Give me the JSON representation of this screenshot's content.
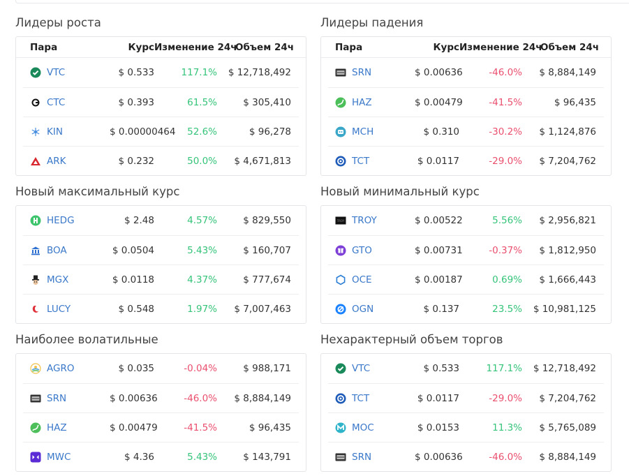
{
  "headers": {
    "pair": "Пара",
    "price": "Курс",
    "change": "Изменение 24ч",
    "volume": "Объем 24ч"
  },
  "sections": [
    {
      "title": "Лидеры роста",
      "show_header": true,
      "rows": [
        {
          "icon": "vtc-icon",
          "symbol": "VTC",
          "price": "$ 0.533",
          "change": "117.1%",
          "dir": "up",
          "volume": "$ 12,718,492"
        },
        {
          "icon": "ctc-icon",
          "symbol": "CTC",
          "price": "$ 0.393",
          "change": "61.5%",
          "dir": "up",
          "volume": "$ 305,410"
        },
        {
          "icon": "kin-icon",
          "symbol": "KIN",
          "price": "$ 0.00000464",
          "change": "52.6%",
          "dir": "up",
          "volume": "$ 96,278"
        },
        {
          "icon": "ark-icon",
          "symbol": "ARK",
          "price": "$ 0.232",
          "change": "50.0%",
          "dir": "up",
          "volume": "$ 4,671,813"
        }
      ]
    },
    {
      "title": "Лидеры падения",
      "show_header": true,
      "rows": [
        {
          "icon": "srn-icon",
          "symbol": "SRN",
          "price": "$ 0.00636",
          "change": "-46.0%",
          "dir": "down",
          "volume": "$ 8,884,149"
        },
        {
          "icon": "haz-icon",
          "symbol": "HAZ",
          "price": "$ 0.00479",
          "change": "-41.5%",
          "dir": "down",
          "volume": "$ 96,435"
        },
        {
          "icon": "mch-icon",
          "symbol": "MCH",
          "price": "$ 0.310",
          "change": "-30.2%",
          "dir": "down",
          "volume": "$ 1,124,876"
        },
        {
          "icon": "tct-icon",
          "symbol": "TCT",
          "price": "$ 0.0117",
          "change": "-29.0%",
          "dir": "down",
          "volume": "$ 7,204,762"
        }
      ]
    },
    {
      "title": "Новый максимальный курс",
      "show_header": false,
      "rows": [
        {
          "icon": "hedg-icon",
          "symbol": "HEDG",
          "price": "$ 2.48",
          "change": "4.57%",
          "dir": "up",
          "volume": "$ 829,550"
        },
        {
          "icon": "boa-icon",
          "symbol": "BOA",
          "price": "$ 0.0504",
          "change": "5.43%",
          "dir": "up",
          "volume": "$ 160,707"
        },
        {
          "icon": "mgx-icon",
          "symbol": "MGX",
          "price": "$ 0.0118",
          "change": "4.37%",
          "dir": "up",
          "volume": "$ 777,674"
        },
        {
          "icon": "lucy-icon",
          "symbol": "LUCY",
          "price": "$ 0.548",
          "change": "1.97%",
          "dir": "up",
          "volume": "$ 7,007,463"
        }
      ]
    },
    {
      "title": "Новый минимальный курс",
      "show_header": false,
      "rows": [
        {
          "icon": "troy-icon",
          "symbol": "TROY",
          "price": "$ 0.00522",
          "change": "5.56%",
          "dir": "up",
          "volume": "$ 2,956,821"
        },
        {
          "icon": "gto-icon",
          "symbol": "GTO",
          "price": "$ 0.00731",
          "change": "-0.37%",
          "dir": "down",
          "volume": "$ 1,812,950"
        },
        {
          "icon": "oce-icon",
          "symbol": "OCE",
          "price": "$ 0.00187",
          "change": "0.69%",
          "dir": "up",
          "volume": "$ 1,666,443"
        },
        {
          "icon": "ogn-icon",
          "symbol": "OGN",
          "price": "$ 0.137",
          "change": "23.5%",
          "dir": "up",
          "volume": "$ 10,981,125"
        }
      ]
    },
    {
      "title": "Наиболее волатильные",
      "show_header": false,
      "rows": [
        {
          "icon": "agro-icon",
          "symbol": "AGRO",
          "price": "$ 0.035",
          "change": "-0.04%",
          "dir": "down",
          "volume": "$ 988,171"
        },
        {
          "icon": "srn-icon",
          "symbol": "SRN",
          "price": "$ 0.00636",
          "change": "-46.0%",
          "dir": "down",
          "volume": "$ 8,884,149"
        },
        {
          "icon": "haz-icon",
          "symbol": "HAZ",
          "price": "$ 0.00479",
          "change": "-41.5%",
          "dir": "down",
          "volume": "$ 96,435"
        },
        {
          "icon": "mwc-icon",
          "symbol": "MWC",
          "price": "$ 4.36",
          "change": "5.43%",
          "dir": "up",
          "volume": "$ 143,791"
        }
      ]
    },
    {
      "title": "Нехарактерный объем торгов",
      "show_header": false,
      "rows": [
        {
          "icon": "vtc-icon",
          "symbol": "VTC",
          "price": "$ 0.533",
          "change": "117.1%",
          "dir": "up",
          "volume": "$ 12,718,492"
        },
        {
          "icon": "tct-icon",
          "symbol": "TCT",
          "price": "$ 0.0117",
          "change": "-29.0%",
          "dir": "down",
          "volume": "$ 7,204,762"
        },
        {
          "icon": "moc-icon",
          "symbol": "MOC",
          "price": "$ 0.0153",
          "change": "11.3%",
          "dir": "up",
          "volume": "$ 5,765,089"
        },
        {
          "icon": "srn-icon",
          "symbol": "SRN",
          "price": "$ 0.00636",
          "change": "-46.0%",
          "dir": "down",
          "volume": "$ 8,884,149"
        }
      ]
    }
  ],
  "colors": {
    "up": "#35c47a",
    "down": "#ea4f6e",
    "symbol": "#3a78c9"
  }
}
